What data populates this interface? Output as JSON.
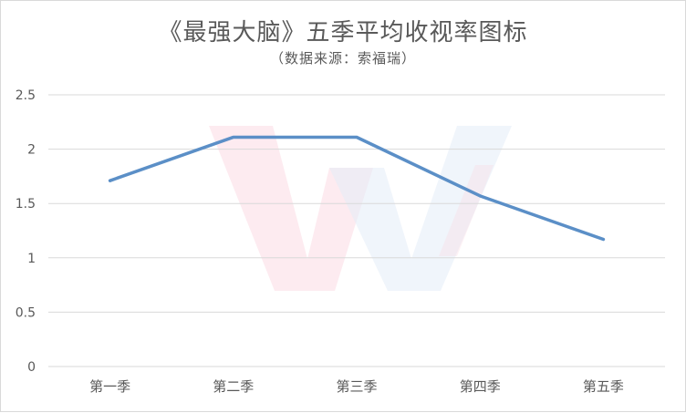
{
  "chart_data": {
    "type": "line",
    "title": "《最强大脑》五季平均收视率图标",
    "subtitle": "（数据来源：索福瑞）",
    "categories": [
      "第一季",
      "第二季",
      "第三季",
      "第四季",
      "第五季"
    ],
    "series": [
      {
        "values": [
          1.71,
          2.11,
          2.11,
          1.57,
          1.17
        ]
      }
    ],
    "ylim": [
      0,
      2.5
    ],
    "yticks": [
      "0",
      "0.5",
      "1",
      "1.5",
      "2",
      "2.5"
    ],
    "grid": true,
    "legend": "none",
    "colors": {
      "line": "#5b8fc7",
      "grid": "#d9d9d9",
      "text": "#595959"
    }
  }
}
